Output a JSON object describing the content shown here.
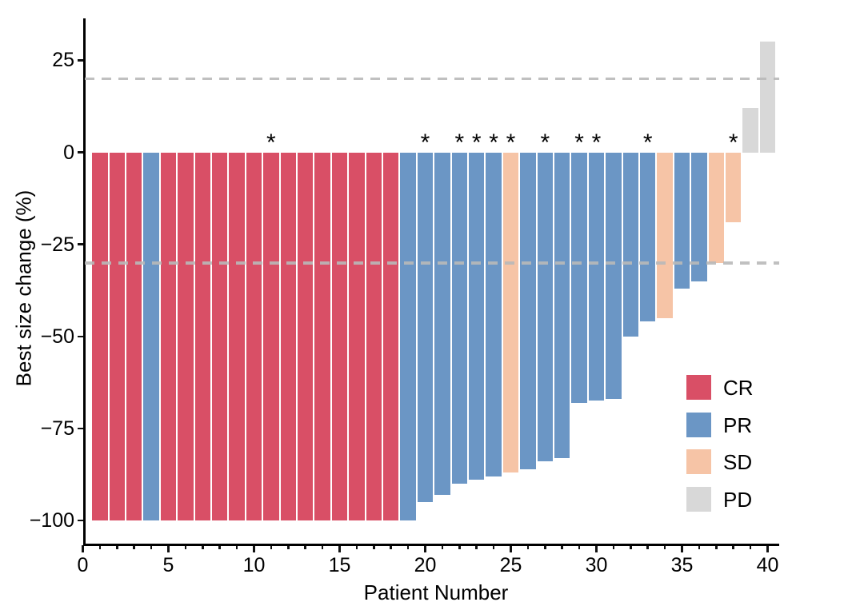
{
  "chart_data": {
    "type": "bar",
    "title": "",
    "xlabel": "Patient Number",
    "ylabel": "Best size change (%)",
    "x_ticks": {
      "values": [
        0,
        5,
        10,
        15,
        20,
        25,
        30,
        35,
        40
      ],
      "labels": [
        "0",
        "5",
        "10",
        "15",
        "20",
        "25",
        "30",
        "35",
        "40"
      ]
    },
    "x_minor_tick_step": 1,
    "y_ticks": {
      "values": [
        25,
        0,
        -25,
        -50,
        -75,
        -100
      ],
      "labels": [
        "25",
        "0",
        "−25",
        "−50",
        "−75",
        "−100"
      ]
    },
    "xlim": [
      0,
      40.7
    ],
    "ylim": [
      -107,
      36.5
    ],
    "grid": false,
    "legend_position": "right-middle",
    "annotation_symbol": "*",
    "reference_lines": [
      {
        "y": 20,
        "style": "dashed",
        "color": "#B9B9B9"
      },
      {
        "y": -30,
        "style": "dashed",
        "color": "#B9B9B9"
      }
    ],
    "groups": [
      {
        "name": "CR",
        "color": "#D94F66"
      },
      {
        "name": "PR",
        "color": "#6B96C5"
      },
      {
        "name": "SD",
        "color": "#F6C4A6"
      },
      {
        "name": "PD",
        "color": "#D8D8D8"
      }
    ],
    "patients": [
      {
        "patient": 1,
        "change": -100,
        "response": "CR",
        "star": false
      },
      {
        "patient": 2,
        "change": -100,
        "response": "CR",
        "star": false
      },
      {
        "patient": 3,
        "change": -100,
        "response": "CR",
        "star": false
      },
      {
        "patient": 4,
        "change": -100,
        "response": "PR",
        "star": false
      },
      {
        "patient": 5,
        "change": -100,
        "response": "CR",
        "star": false
      },
      {
        "patient": 6,
        "change": -100,
        "response": "CR",
        "star": false
      },
      {
        "patient": 7,
        "change": -100,
        "response": "CR",
        "star": false
      },
      {
        "patient": 8,
        "change": -100,
        "response": "CR",
        "star": false
      },
      {
        "patient": 9,
        "change": -100,
        "response": "CR",
        "star": false
      },
      {
        "patient": 10,
        "change": -100,
        "response": "CR",
        "star": false
      },
      {
        "patient": 11,
        "change": -100,
        "response": "CR",
        "star": true
      },
      {
        "patient": 12,
        "change": -100,
        "response": "CR",
        "star": false
      },
      {
        "patient": 13,
        "change": -100,
        "response": "CR",
        "star": false
      },
      {
        "patient": 14,
        "change": -100,
        "response": "CR",
        "star": false
      },
      {
        "patient": 15,
        "change": -100,
        "response": "CR",
        "star": false
      },
      {
        "patient": 16,
        "change": -100,
        "response": "CR",
        "star": false
      },
      {
        "patient": 17,
        "change": -100,
        "response": "CR",
        "star": false
      },
      {
        "patient": 18,
        "change": -100,
        "response": "CR",
        "star": false
      },
      {
        "patient": 19,
        "change": -100,
        "response": "PR",
        "star": false
      },
      {
        "patient": 20,
        "change": -95,
        "response": "PR",
        "star": true
      },
      {
        "patient": 21,
        "change": -93,
        "response": "PR",
        "star": false
      },
      {
        "patient": 22,
        "change": -90,
        "response": "PR",
        "star": true
      },
      {
        "patient": 23,
        "change": -89,
        "response": "PR",
        "star": true
      },
      {
        "patient": 24,
        "change": -88,
        "response": "PR",
        "star": true
      },
      {
        "patient": 25,
        "change": -87,
        "response": "SD",
        "star": true
      },
      {
        "patient": 26,
        "change": -86,
        "response": "PR",
        "star": false
      },
      {
        "patient": 27,
        "change": -84,
        "response": "PR",
        "star": true
      },
      {
        "patient": 28,
        "change": -83,
        "response": "PR",
        "star": false
      },
      {
        "patient": 29,
        "change": -68,
        "response": "PR",
        "star": true
      },
      {
        "patient": 30,
        "change": -67.5,
        "response": "PR",
        "star": true
      },
      {
        "patient": 31,
        "change": -67,
        "response": "PR",
        "star": false
      },
      {
        "patient": 32,
        "change": -50,
        "response": "PR",
        "star": false
      },
      {
        "patient": 33,
        "change": -46,
        "response": "PR",
        "star": true
      },
      {
        "patient": 34,
        "change": -45,
        "response": "SD",
        "star": false
      },
      {
        "patient": 35,
        "change": -37,
        "response": "PR",
        "star": false
      },
      {
        "patient": 36,
        "change": -35,
        "response": "PR",
        "star": false
      },
      {
        "patient": 37,
        "change": -30,
        "response": "SD",
        "star": false
      },
      {
        "patient": 38,
        "change": -19,
        "response": "SD",
        "star": true
      },
      {
        "patient": 39,
        "change": 12,
        "response": "PD",
        "star": false
      },
      {
        "patient": 40,
        "change": 30,
        "response": "PD",
        "star": false
      }
    ]
  }
}
